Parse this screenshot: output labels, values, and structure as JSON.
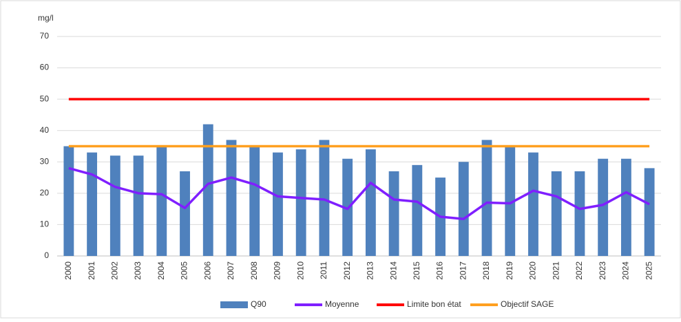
{
  "chart_data": {
    "type": "bar",
    "ylabel": "mg/l",
    "categories": [
      "2000",
      "2001",
      "2002",
      "2003",
      "2004",
      "2005",
      "2006",
      "2007",
      "2008",
      "2009",
      "2010",
      "2011",
      "2012",
      "2013",
      "2014",
      "2015",
      "2016",
      "2017",
      "2018",
      "2019",
      "2020",
      "2021",
      "2022",
      "2023",
      "2024",
      "2025"
    ],
    "series": [
      {
        "name": "Q90",
        "type": "bar",
        "color": "#4f81bd",
        "values": [
          35,
          33,
          32,
          32,
          35,
          27,
          42,
          37,
          35,
          33,
          34,
          37,
          31,
          34,
          27,
          29,
          25,
          30,
          37,
          35,
          33,
          27,
          27,
          31,
          31,
          28
        ]
      },
      {
        "name": "Moyenne",
        "type": "line",
        "color": "#7f1fff",
        "values": [
          28,
          26,
          22,
          20,
          19.7,
          15.3,
          23,
          25,
          22.8,
          19,
          18.5,
          18,
          15,
          23.3,
          18,
          17.3,
          12.5,
          11.8,
          17,
          16.8,
          20.8,
          19,
          15,
          16.3,
          20.3,
          16.5
        ]
      },
      {
        "name": "Limite bon état",
        "type": "line",
        "color": "#ff0000",
        "values": [
          50,
          50,
          50,
          50,
          50,
          50,
          50,
          50,
          50,
          50,
          50,
          50,
          50,
          50,
          50,
          50,
          50,
          50,
          50,
          50,
          50,
          50,
          50,
          50,
          50,
          50
        ]
      },
      {
        "name": "Objectif SAGE",
        "type": "line",
        "color": "#ffa020",
        "values": [
          35,
          35,
          35,
          35,
          35,
          35,
          35,
          35,
          35,
          35,
          35,
          35,
          35,
          35,
          35,
          35,
          35,
          35,
          35,
          35,
          35,
          35,
          35,
          35,
          35,
          35
        ]
      }
    ],
    "ylim": [
      0,
      70
    ],
    "yticks": [
      0,
      10,
      20,
      30,
      40,
      50,
      60,
      70
    ],
    "grid": true,
    "legend": "bottom"
  }
}
